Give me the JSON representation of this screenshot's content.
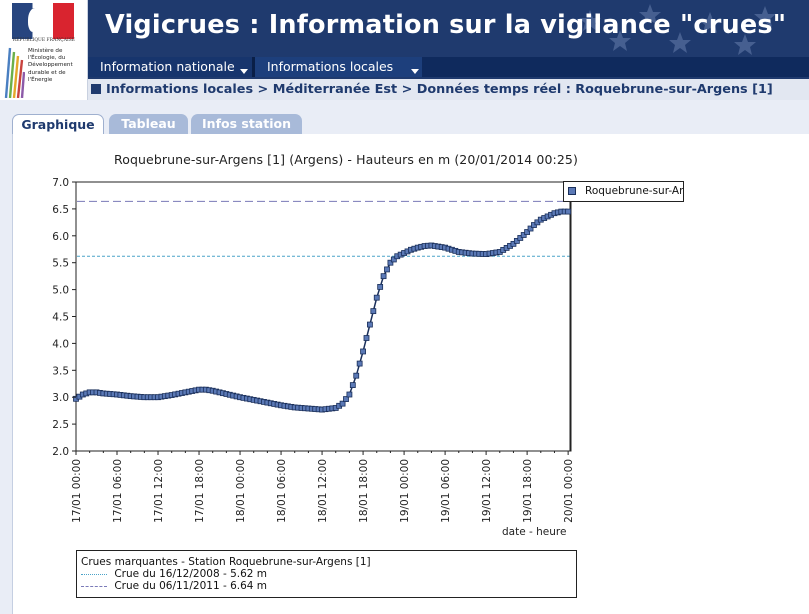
{
  "header": {
    "title": "Vigicrues : Information sur la vigilance \"crues\"",
    "republique": "RÉPUBLIQUE FRANÇAISE",
    "ministry": "Ministère de l'Écologie, du Développement durable et de l'Énergie"
  },
  "nav": {
    "items": [
      {
        "label": "Information nationale",
        "icon": "chevron-down-icon"
      },
      {
        "label": "Informations locales",
        "icon": "chevron-down-icon"
      }
    ]
  },
  "breadcrumb": {
    "text": "Informations locales > Méditerranée Est > Données temps réel : Roquebrune-sur-Argens [1]"
  },
  "tabs": [
    {
      "label": "Graphique",
      "active": true
    },
    {
      "label": "Tableau",
      "active": false
    },
    {
      "label": "Infos station",
      "active": false
    }
  ],
  "colors": {
    "header_bg": "#1f3a6e",
    "nav_bg": "#0f2a5d",
    "series": "#5b79b6",
    "crue_2008": "#4aa3c8",
    "crue_2011": "#7a7ab8"
  },
  "chart_data": {
    "type": "line",
    "title": "Roquebrune-sur-Argens [1] (Argens) - Hauteurs en m (20/01/2014 00:25)",
    "xlabel": "date - heure",
    "ylabel": "",
    "ylim": [
      2.0,
      7.0
    ],
    "y_ticks": [
      "2.0",
      "2.5",
      "3.0",
      "3.5",
      "4.0",
      "4.5",
      "5.0",
      "5.5",
      "6.0",
      "6.5",
      "7.0"
    ],
    "x_ticks": [
      "17/01 00:00",
      "17/01 06:00",
      "17/01 12:00",
      "17/01 18:00",
      "18/01 00:00",
      "18/01 06:00",
      "18/01 12:00",
      "18/01 18:00",
      "19/01 00:00",
      "19/01 06:00",
      "19/01 12:00",
      "19/01 18:00",
      "20/01 00:00"
    ],
    "x_range_hours": [
      0,
      72.42
    ],
    "legend_position": "top-right",
    "series": [
      {
        "name": "Roquebrune-sur-Ar",
        "x_hours": [
          0,
          1,
          2,
          3,
          4,
          6,
          8,
          10,
          12,
          14,
          16,
          18,
          19,
          20,
          22,
          24,
          26,
          28,
          30,
          32,
          34,
          36,
          38,
          39,
          40,
          41,
          42,
          43,
          44,
          45,
          46,
          47,
          48,
          49,
          50,
          51,
          52,
          54,
          56,
          58,
          60,
          62,
          64,
          66,
          67,
          68,
          69,
          70,
          71,
          72,
          72.42
        ],
        "values": [
          2.97,
          3.05,
          3.09,
          3.09,
          3.07,
          3.05,
          3.02,
          3.0,
          3.0,
          3.04,
          3.09,
          3.14,
          3.14,
          3.12,
          3.06,
          3.0,
          2.95,
          2.9,
          2.85,
          2.81,
          2.79,
          2.77,
          2.8,
          2.88,
          3.05,
          3.4,
          3.85,
          4.35,
          4.85,
          5.25,
          5.5,
          5.62,
          5.68,
          5.74,
          5.78,
          5.81,
          5.82,
          5.78,
          5.7,
          5.67,
          5.66,
          5.7,
          5.85,
          6.07,
          6.2,
          6.3,
          6.36,
          6.42,
          6.45,
          6.45,
          6.45
        ]
      }
    ],
    "reference_lines": [
      {
        "label": "Crue du 16/12/2008 - 5.62 m",
        "value": 5.62,
        "style": "dotted"
      },
      {
        "label": "Crue du 06/11/2011 - 6.64 m",
        "value": 6.64,
        "style": "dashed"
      }
    ]
  },
  "marks": {
    "title": "Crues marquantes - Station Roquebrune-sur-Argens [1]"
  }
}
